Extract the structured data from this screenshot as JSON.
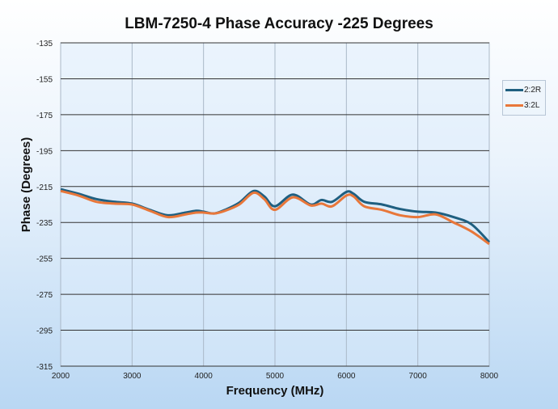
{
  "chart_data": {
    "type": "line",
    "title": "LBM-7250-4 Phase Accuracy -225 Degrees",
    "xlabel": "Frequency (MHz)",
    "ylabel": "Phase (Degrees)",
    "xlim": [
      2000,
      8000
    ],
    "ylim": [
      -315,
      -135
    ],
    "xticks": [
      2000,
      3000,
      4000,
      5000,
      6000,
      7000,
      8000
    ],
    "yticks": [
      -135,
      -155,
      -175,
      -195,
      -215,
      -235,
      -255,
      -275,
      -295,
      -315
    ],
    "grid": true,
    "legend_position": "right",
    "x": [
      2000,
      2250,
      2500,
      2750,
      3000,
      3250,
      3500,
      3750,
      3900,
      4000,
      4150,
      4300,
      4500,
      4700,
      4850,
      5000,
      5250,
      5500,
      5650,
      5800,
      6000,
      6100,
      6250,
      6500,
      6750,
      7000,
      7250,
      7500,
      7750,
      8000
    ],
    "series": [
      {
        "name": "2:2R",
        "color": "#1f5f80",
        "values": [
          -216.5,
          -219,
          -222,
          -223.5,
          -224.5,
          -228,
          -231,
          -229.5,
          -228.5,
          -229,
          -230,
          -228,
          -224,
          -217.5,
          -220.5,
          -226,
          -219.5,
          -225,
          -222.5,
          -223.5,
          -218,
          -219,
          -223.5,
          -225,
          -227.5,
          -229,
          -229.5,
          -232,
          -236,
          -246
        ]
      },
      {
        "name": "3:2L",
        "color": "#e8773a",
        "values": [
          -217.5,
          -220,
          -223.5,
          -224.5,
          -225,
          -228.5,
          -232,
          -230.5,
          -229.5,
          -229.5,
          -230,
          -228.5,
          -225,
          -218.5,
          -222,
          -228,
          -221,
          -225.5,
          -224.5,
          -226,
          -220,
          -220.5,
          -226,
          -228,
          -231,
          -232,
          -230.5,
          -235,
          -240,
          -247
        ]
      }
    ]
  }
}
